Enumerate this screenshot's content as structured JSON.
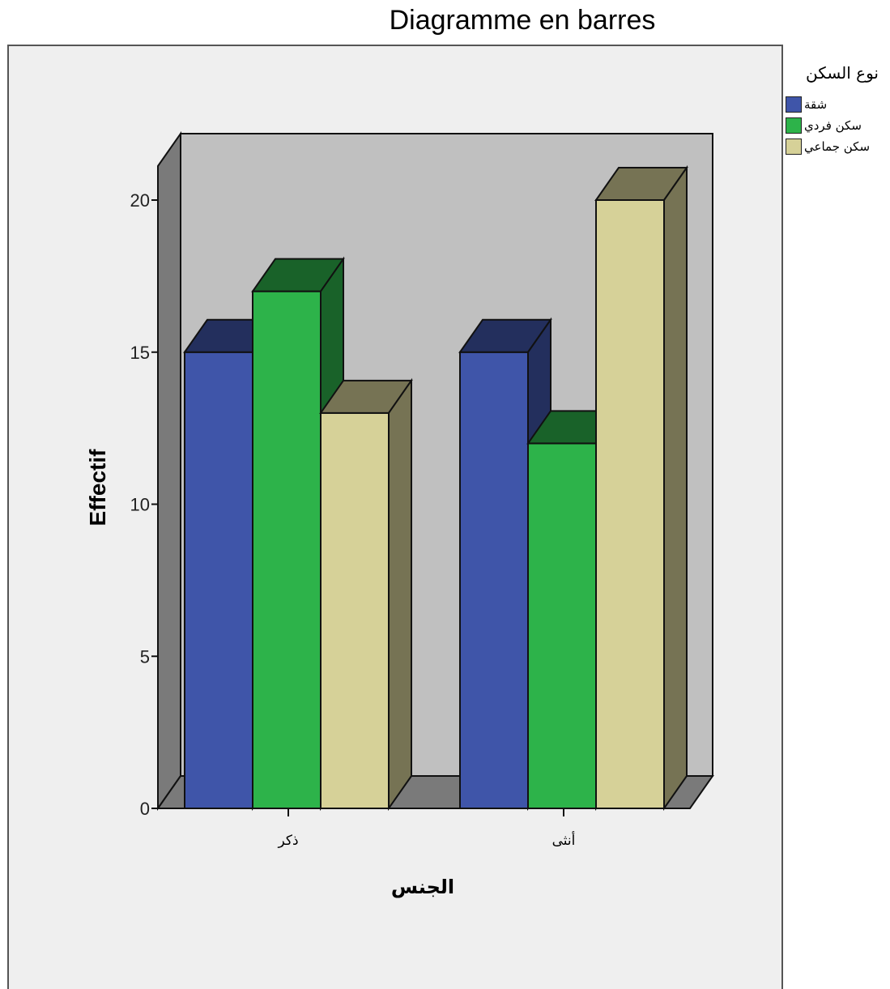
{
  "chart_data": {
    "type": "bar",
    "title": "Diagramme en barres",
    "xlabel": "الجنس",
    "ylabel": "Effectif",
    "categories": [
      "ذكر",
      "أنثى"
    ],
    "series": [
      {
        "name": "شقة",
        "values": [
          15,
          15
        ],
        "color": "#3f55a9"
      },
      {
        "name": "سكن فردي",
        "values": [
          17,
          12
        ],
        "color": "#2db34a"
      },
      {
        "name": "سكن جماعي",
        "values": [
          13,
          20
        ],
        "color": "#d6d198"
      }
    ],
    "legend_title": "نوع السكن",
    "legend_position": "right",
    "ylim": [
      0,
      20
    ],
    "yticks": [
      "0",
      "5",
      "10",
      "15",
      "20"
    ],
    "style": "3d",
    "grid": false
  }
}
